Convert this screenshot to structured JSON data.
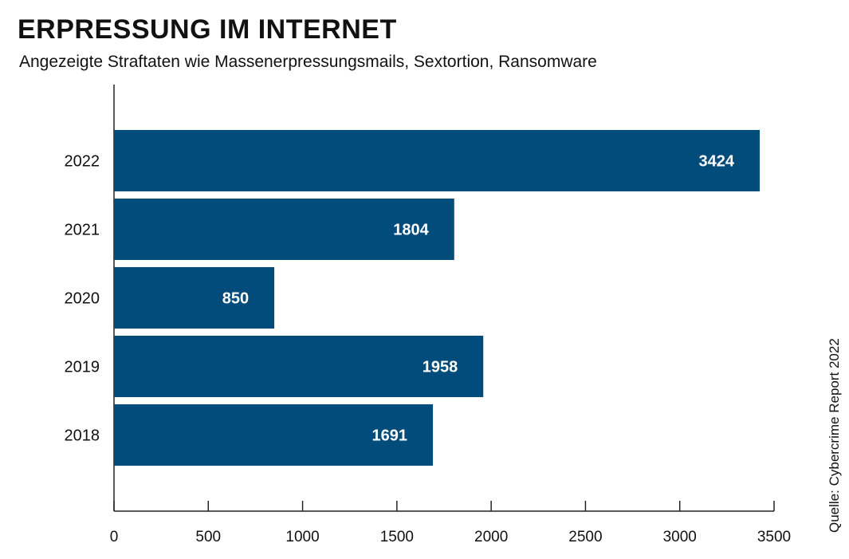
{
  "title": "ERPRESSUNG IM INTERNET",
  "subtitle": "Angezeigte Straftaten wie Massenerpressungsmails, Sextortion, Ransomware",
  "source": "Quelle: Cybercrime Report 2022",
  "colors": {
    "bar": "#024c7c",
    "axis": "#222222",
    "value_label": "#ffffff"
  },
  "chart_data": {
    "type": "bar",
    "orientation": "horizontal",
    "categories": [
      "2022",
      "2021",
      "2020",
      "2019",
      "2018"
    ],
    "values": [
      3424,
      1804,
      850,
      1958,
      1691
    ],
    "xlim": [
      0,
      3500
    ],
    "xticks": [
      0,
      500,
      1000,
      1500,
      2000,
      2500,
      3000,
      3500
    ],
    "xtick_labels": [
      "0",
      "500",
      "1000",
      "1500",
      "2000",
      "2500",
      "3000",
      "3500"
    ],
    "value_labels": [
      "3424",
      "1804",
      "850",
      "1958",
      "1691"
    ],
    "grid": false,
    "legend": "none"
  }
}
